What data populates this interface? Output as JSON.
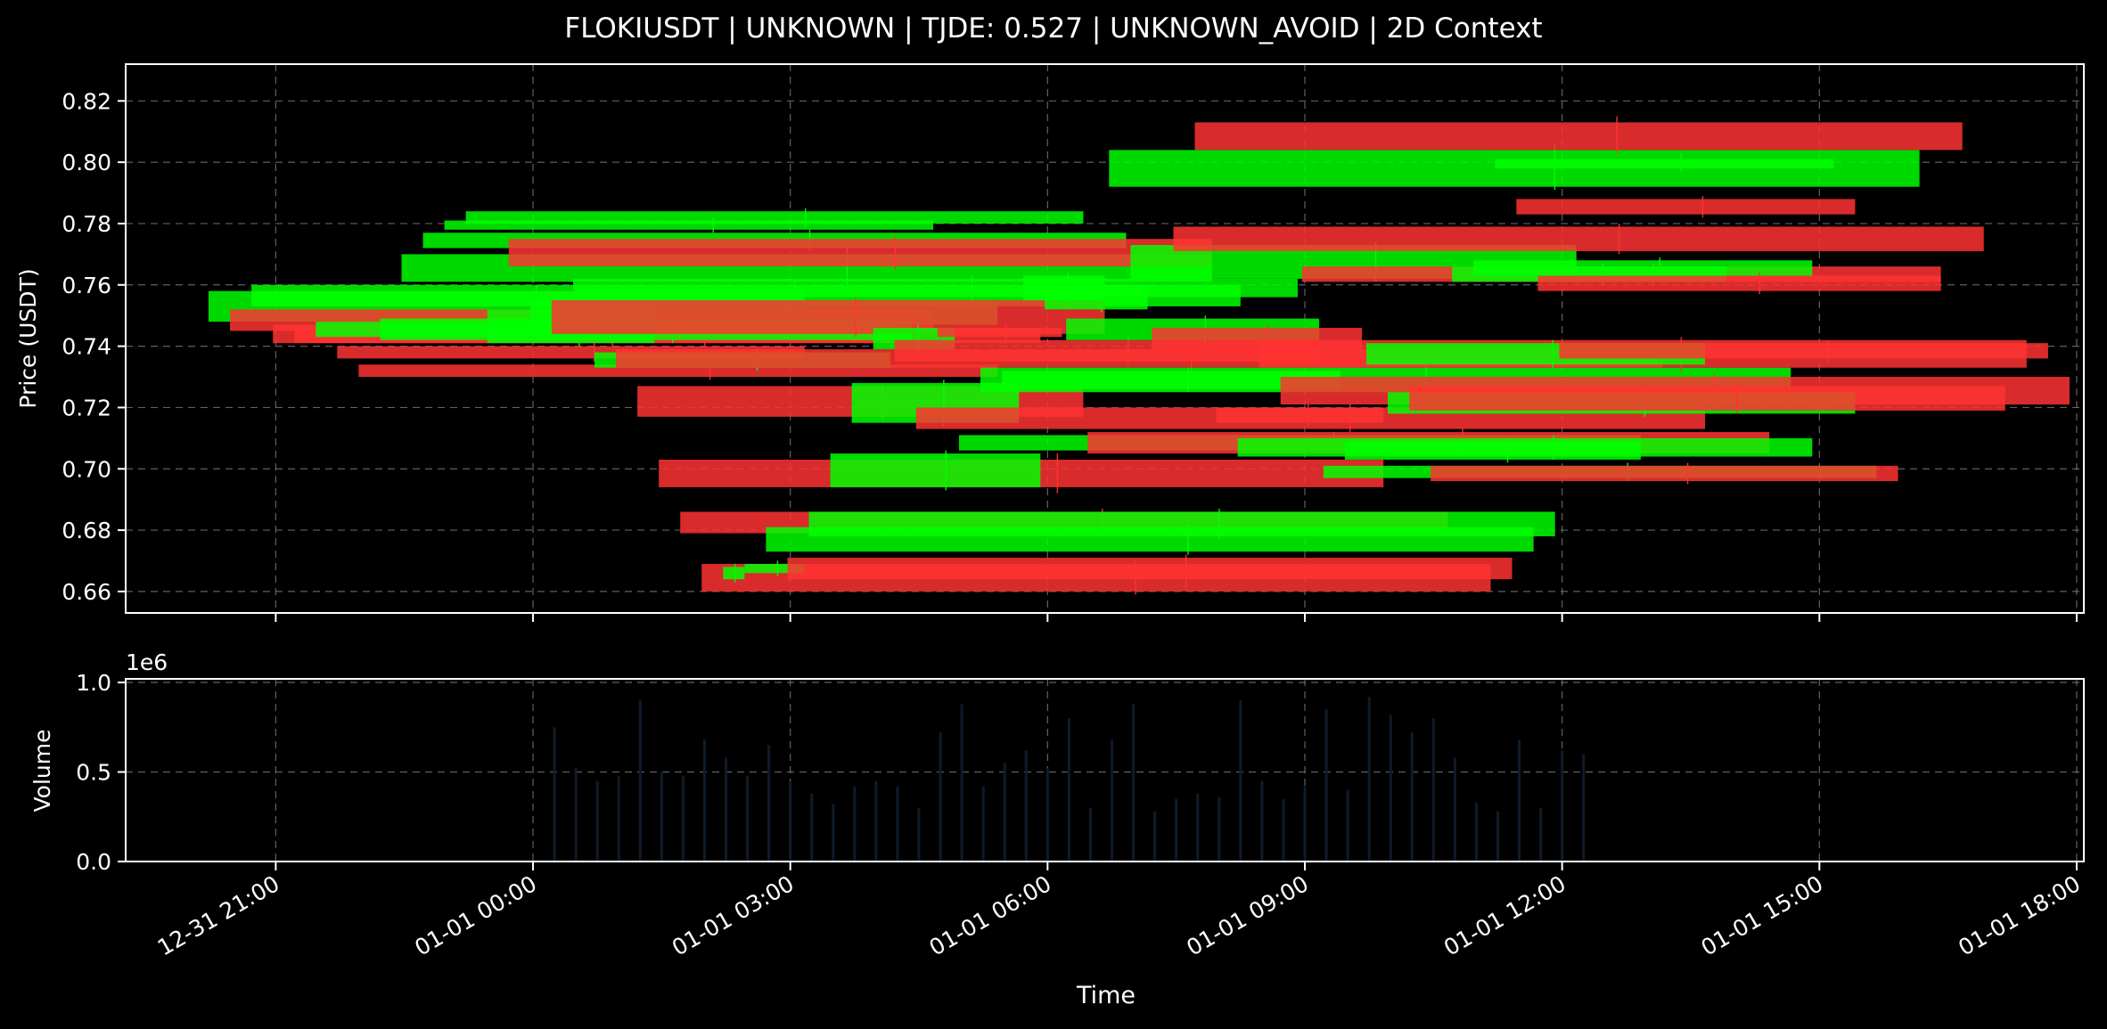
{
  "chart_data": {
    "type": "candlestick",
    "title": "FLOKIUSDT | UNKNOWN | TJDE: 0.527 | UNKNOWN_AVOID | 2D Context",
    "xlabel": "Time",
    "xlim": [
      "12-31 19:15",
      "01-01 18:05"
    ],
    "xticks": [
      "12-31 21:00",
      "01-01 00:00",
      "01-01 03:00",
      "01-01 06:00",
      "01-01 09:00",
      "01-01 12:00",
      "01-01 15:00",
      "01-01 18:00"
    ],
    "grid": true,
    "price_panel": {
      "ylabel": "Price (USDT)",
      "ylim": [
        0.653,
        0.832
      ],
      "yticks": [
        "0.66",
        "0.68",
        "0.70",
        "0.72",
        "0.74",
        "0.76",
        "0.78",
        "0.80",
        "0.82"
      ],
      "colors": {
        "up": "#00ff00",
        "down": "#ff3333"
      },
      "candles": [
        {
          "t0": "12-31 20:13",
          "t1": "01-01 03:10",
          "open": 0.748,
          "close": 0.758,
          "high": 0.76,
          "low": 0.747,
          "dir": "up"
        },
        {
          "t0": "12-31 20:28",
          "t1": "01-01 04:40",
          "open": 0.752,
          "close": 0.745,
          "high": 0.753,
          "low": 0.744,
          "dir": "down"
        },
        {
          "t0": "12-31 20:43",
          "t1": "01-01 08:15",
          "open": 0.753,
          "close": 0.76,
          "high": 0.761,
          "low": 0.752,
          "dir": "up"
        },
        {
          "t0": "12-31 20:58",
          "t1": "01-01 04:10",
          "open": 0.747,
          "close": 0.741,
          "high": 0.748,
          "low": 0.74,
          "dir": "down"
        },
        {
          "t0": "12-31 21:13",
          "t1": "01-01 05:55",
          "open": 0.746,
          "close": 0.741,
          "high": 0.747,
          "low": 0.74,
          "dir": "down"
        },
        {
          "t0": "12-31 21:28",
          "t1": "01-01 00:45",
          "open": 0.743,
          "close": 0.748,
          "high": 0.749,
          "low": 0.742,
          "dir": "up"
        },
        {
          "t0": "12-31 21:43",
          "t1": "01-01 03:10",
          "open": 0.74,
          "close": 0.736,
          "high": 0.741,
          "low": 0.735,
          "dir": "down"
        },
        {
          "t0": "12-31 21:58",
          "t1": "01-01 05:25",
          "open": 0.734,
          "close": 0.73,
          "high": 0.735,
          "low": 0.729,
          "dir": "down"
        },
        {
          "t0": "12-31 22:13",
          "t1": "01-01 04:25",
          "open": 0.742,
          "close": 0.749,
          "high": 0.75,
          "low": 0.741,
          "dir": "up"
        },
        {
          "t0": "12-31 22:28",
          "t1": "01-01 07:55",
          "open": 0.761,
          "close": 0.77,
          "high": 0.772,
          "low": 0.76,
          "dir": "up"
        },
        {
          "t0": "12-31 22:43",
          "t1": "01-01 06:55",
          "open": 0.772,
          "close": 0.777,
          "high": 0.778,
          "low": 0.771,
          "dir": "up"
        },
        {
          "t0": "12-31 22:58",
          "t1": "01-01 04:40",
          "open": 0.778,
          "close": 0.781,
          "high": 0.782,
          "low": 0.777,
          "dir": "up"
        },
        {
          "t0": "12-31 23:13",
          "t1": "01-01 06:25",
          "open": 0.78,
          "close": 0.784,
          "high": 0.785,
          "low": 0.779,
          "dir": "up"
        },
        {
          "t0": "12-31 23:28",
          "t1": "01-01 01:25",
          "open": 0.741,
          "close": 0.752,
          "high": 0.753,
          "low": 0.74,
          "dir": "up"
        },
        {
          "t0": "12-31 23:43",
          "t1": "01-01 07:55",
          "open": 0.775,
          "close": 0.766,
          "high": 0.776,
          "low": 0.765,
          "dir": "down"
        },
        {
          "t0": "12-31 23:58",
          "t1": "01-01 05:25",
          "open": 0.747,
          "close": 0.755,
          "high": 0.756,
          "low": 0.746,
          "dir": "up"
        },
        {
          "t0": "01-01 00:13",
          "t1": "01-01 06:40",
          "open": 0.755,
          "close": 0.744,
          "high": 0.756,
          "low": 0.743,
          "dir": "down"
        },
        {
          "t0": "01-01 00:28",
          "t1": "01-01 08:55",
          "open": 0.756,
          "close": 0.762,
          "high": 0.763,
          "low": 0.755,
          "dir": "up"
        },
        {
          "t0": "01-01 00:43",
          "t1": "01-01 04:10",
          "open": 0.733,
          "close": 0.738,
          "high": 0.739,
          "low": 0.732,
          "dir": "up"
        },
        {
          "t0": "01-01 00:58",
          "t1": "01-01 13:10",
          "open": 0.739,
          "close": 0.733,
          "high": 0.74,
          "low": 0.732,
          "dir": "down"
        },
        {
          "t0": "01-01 01:13",
          "t1": "01-01 06:25",
          "open": 0.727,
          "close": 0.717,
          "high": 0.728,
          "low": 0.716,
          "dir": "down"
        },
        {
          "t0": "01-01 01:28",
          "t1": "01-01 09:55",
          "open": 0.703,
          "close": 0.694,
          "high": 0.705,
          "low": 0.692,
          "dir": "down"
        },
        {
          "t0": "01-01 01:43",
          "t1": "01-01 10:40",
          "open": 0.686,
          "close": 0.679,
          "high": 0.687,
          "low": 0.678,
          "dir": "down"
        },
        {
          "t0": "01-01 01:58",
          "t1": "01-01 11:10",
          "open": 0.669,
          "close": 0.66,
          "high": 0.67,
          "low": 0.659,
          "dir": "down"
        },
        {
          "t0": "01-01 02:13",
          "t1": "01-01 02:28",
          "open": 0.664,
          "close": 0.668,
          "high": 0.669,
          "low": 0.663,
          "dir": "up"
        },
        {
          "t0": "01-01 02:28",
          "t1": "01-01 03:10",
          "open": 0.666,
          "close": 0.669,
          "high": 0.67,
          "low": 0.665,
          "dir": "up"
        },
        {
          "t0": "01-01 02:43",
          "t1": "01-01 11:40",
          "open": 0.673,
          "close": 0.681,
          "high": 0.682,
          "low": 0.672,
          "dir": "up"
        },
        {
          "t0": "01-01 02:58",
          "t1": "01-01 11:25",
          "open": 0.671,
          "close": 0.664,
          "high": 0.672,
          "low": 0.661,
          "dir": "down"
        },
        {
          "t0": "01-01 03:13",
          "t1": "01-01 11:55",
          "open": 0.678,
          "close": 0.686,
          "high": 0.687,
          "low": 0.677,
          "dir": "up"
        },
        {
          "t0": "01-01 03:28",
          "t1": "01-01 05:55",
          "open": 0.694,
          "close": 0.705,
          "high": 0.706,
          "low": 0.693,
          "dir": "up"
        },
        {
          "t0": "01-01 03:43",
          "t1": "01-01 05:40",
          "open": 0.715,
          "close": 0.728,
          "high": 0.729,
          "low": 0.714,
          "dir": "up"
        },
        {
          "t0": "01-01 03:58",
          "t1": "01-01 04:55",
          "open": 0.739,
          "close": 0.746,
          "high": 0.747,
          "low": 0.738,
          "dir": "up"
        },
        {
          "t0": "01-01 04:13",
          "t1": "01-01 09:10",
          "open": 0.742,
          "close": 0.735,
          "high": 0.743,
          "low": 0.734,
          "dir": "down"
        },
        {
          "t0": "01-01 04:28",
          "t1": "01-01 13:40",
          "open": 0.72,
          "close": 0.713,
          "high": 0.721,
          "low": 0.712,
          "dir": "down"
        },
        {
          "t0": "01-01 04:43",
          "t1": "01-01 06:10",
          "open": 0.746,
          "close": 0.743,
          "high": 0.747,
          "low": 0.742,
          "dir": "down"
        },
        {
          "t0": "01-01 04:58",
          "t1": "01-01 12:55",
          "open": 0.706,
          "close": 0.711,
          "high": 0.712,
          "low": 0.705,
          "dir": "up"
        },
        {
          "t0": "01-01 05:13",
          "t1": "01-01 14:40",
          "open": 0.725,
          "close": 0.733,
          "high": 0.734,
          "low": 0.724,
          "dir": "up"
        },
        {
          "t0": "01-01 05:28",
          "t1": "01-01 09:25",
          "open": 0.726,
          "close": 0.732,
          "high": 0.733,
          "low": 0.725,
          "dir": "up"
        },
        {
          "t0": "01-01 05:43",
          "t1": "01-01 06:40",
          "open": 0.755,
          "close": 0.763,
          "high": 0.764,
          "low": 0.754,
          "dir": "up"
        },
        {
          "t0": "01-01 05:58",
          "t1": "01-01 07:10",
          "open": 0.752,
          "close": 0.76,
          "high": 0.761,
          "low": 0.751,
          "dir": "up"
        },
        {
          "t0": "01-01 06:13",
          "t1": "01-01 09:10",
          "open": 0.742,
          "close": 0.749,
          "high": 0.75,
          "low": 0.741,
          "dir": "up"
        },
        {
          "t0": "01-01 06:28",
          "t1": "01-01 14:25",
          "open": 0.712,
          "close": 0.705,
          "high": 0.713,
          "low": 0.704,
          "dir": "down"
        },
        {
          "t0": "01-01 06:43",
          "t1": "01-01 16:10",
          "open": 0.792,
          "close": 0.804,
          "high": 0.806,
          "low": 0.791,
          "dir": "up"
        },
        {
          "t0": "01-01 06:58",
          "t1": "01-01 12:10",
          "open": 0.762,
          "close": 0.773,
          "high": 0.774,
          "low": 0.761,
          "dir": "up"
        },
        {
          "t0": "01-01 07:13",
          "t1": "01-01 09:40",
          "open": 0.746,
          "close": 0.739,
          "high": 0.747,
          "low": 0.738,
          "dir": "down"
        },
        {
          "t0": "01-01 07:28",
          "t1": "01-01 16:55",
          "open": 0.779,
          "close": 0.771,
          "high": 0.78,
          "low": 0.77,
          "dir": "down"
        },
        {
          "t0": "01-01 07:43",
          "t1": "01-01 16:40",
          "open": 0.813,
          "close": 0.804,
          "high": 0.815,
          "low": 0.803,
          "dir": "down"
        },
        {
          "t0": "01-01 07:58",
          "t1": "01-01 09:55",
          "open": 0.72,
          "close": 0.715,
          "high": 0.721,
          "low": 0.714,
          "dir": "down"
        },
        {
          "t0": "01-01 08:13",
          "t1": "01-01 14:55",
          "open": 0.704,
          "close": 0.71,
          "high": 0.711,
          "low": 0.703,
          "dir": "up"
        },
        {
          "t0": "01-01 08:28",
          "t1": "01-01 17:25",
          "open": 0.742,
          "close": 0.733,
          "high": 0.743,
          "low": 0.732,
          "dir": "down"
        },
        {
          "t0": "01-01 08:43",
          "t1": "01-01 17:55",
          "open": 0.73,
          "close": 0.721,
          "high": 0.731,
          "low": 0.72,
          "dir": "down"
        },
        {
          "t0": "01-01 08:58",
          "t1": "01-01 16:25",
          "open": 0.766,
          "close": 0.761,
          "high": 0.767,
          "low": 0.76,
          "dir": "down"
        },
        {
          "t0": "01-01 09:13",
          "t1": "01-01 15:40",
          "open": 0.697,
          "close": 0.701,
          "high": 0.702,
          "low": 0.696,
          "dir": "up"
        },
        {
          "t0": "01-01 09:28",
          "t1": "01-01 12:55",
          "open": 0.703,
          "close": 0.709,
          "high": 0.71,
          "low": 0.702,
          "dir": "up"
        },
        {
          "t0": "01-01 09:43",
          "t1": "01-01 13:40",
          "open": 0.734,
          "close": 0.741,
          "high": 0.742,
          "low": 0.733,
          "dir": "up"
        },
        {
          "t0": "01-01 09:58",
          "t1": "01-01 15:25",
          "open": 0.718,
          "close": 0.725,
          "high": 0.726,
          "low": 0.717,
          "dir": "up"
        },
        {
          "t0": "01-01 10:13",
          "t1": "01-01 17:10",
          "open": 0.727,
          "close": 0.719,
          "high": 0.728,
          "low": 0.718,
          "dir": "down"
        },
        {
          "t0": "01-01 10:28",
          "t1": "01-01 15:55",
          "open": 0.701,
          "close": 0.696,
          "high": 0.702,
          "low": 0.695,
          "dir": "down"
        },
        {
          "t0": "01-01 10:43",
          "t1": "01-01 13:55",
          "open": 0.761,
          "close": 0.766,
          "high": 0.767,
          "low": 0.76,
          "dir": "up"
        },
        {
          "t0": "01-01 10:58",
          "t1": "01-01 14:55",
          "open": 0.763,
          "close": 0.768,
          "high": 0.769,
          "low": 0.762,
          "dir": "up"
        },
        {
          "t0": "01-01 11:13",
          "t1": "01-01 15:10",
          "open": 0.798,
          "close": 0.801,
          "high": 0.803,
          "low": 0.797,
          "dir": "up"
        },
        {
          "t0": "01-01 11:28",
          "t1": "01-01 15:25",
          "open": 0.788,
          "close": 0.783,
          "high": 0.789,
          "low": 0.782,
          "dir": "down"
        },
        {
          "t0": "01-01 11:43",
          "t1": "01-01 16:25",
          "open": 0.763,
          "close": 0.758,
          "high": 0.764,
          "low": 0.757,
          "dir": "down"
        },
        {
          "t0": "01-01 11:58",
          "t1": "01-01 17:40",
          "open": 0.741,
          "close": 0.736,
          "high": 0.742,
          "low": 0.735,
          "dir": "down"
        }
      ]
    },
    "volume_panel": {
      "ylabel": "Volume",
      "scale_label": "1e6",
      "ylim": [
        0,
        1.02
      ],
      "yticks": [
        "0.0",
        "0.5",
        "1.0"
      ],
      "bar_color": "#0f1b2a",
      "bars": [
        {
          "t": "01-01 00:15",
          "v": 0.75
        },
        {
          "t": "01-01 00:30",
          "v": 0.52
        },
        {
          "t": "01-01 00:45",
          "v": 0.45
        },
        {
          "t": "01-01 01:00",
          "v": 0.48
        },
        {
          "t": "01-01 01:15",
          "v": 0.9
        },
        {
          "t": "01-01 01:30",
          "v": 0.5
        },
        {
          "t": "01-01 01:45",
          "v": 0.48
        },
        {
          "t": "01-01 02:00",
          "v": 0.68
        },
        {
          "t": "01-01 02:15",
          "v": 0.58
        },
        {
          "t": "01-01 02:30",
          "v": 0.48
        },
        {
          "t": "01-01 02:45",
          "v": 0.65
        },
        {
          "t": "01-01 03:00",
          "v": 0.45
        },
        {
          "t": "01-01 03:15",
          "v": 0.38
        },
        {
          "t": "01-01 03:30",
          "v": 0.32
        },
        {
          "t": "01-01 03:45",
          "v": 0.42
        },
        {
          "t": "01-01 04:00",
          "v": 0.45
        },
        {
          "t": "01-01 04:15",
          "v": 0.42
        },
        {
          "t": "01-01 04:30",
          "v": 0.3
        },
        {
          "t": "01-01 04:45",
          "v": 0.72
        },
        {
          "t": "01-01 05:00",
          "v": 0.88
        },
        {
          "t": "01-01 05:15",
          "v": 0.42
        },
        {
          "t": "01-01 05:30",
          "v": 0.55
        },
        {
          "t": "01-01 05:45",
          "v": 0.62
        },
        {
          "t": "01-01 06:00",
          "v": 0.52
        },
        {
          "t": "01-01 06:15",
          "v": 0.8
        },
        {
          "t": "01-01 06:30",
          "v": 0.3
        },
        {
          "t": "01-01 06:45",
          "v": 0.68
        },
        {
          "t": "01-01 07:00",
          "v": 0.88
        },
        {
          "t": "01-01 07:15",
          "v": 0.28
        },
        {
          "t": "01-01 07:30",
          "v": 0.35
        },
        {
          "t": "01-01 07:45",
          "v": 0.38
        },
        {
          "t": "01-01 08:00",
          "v": 0.36
        },
        {
          "t": "01-01 08:15",
          "v": 0.9
        },
        {
          "t": "01-01 08:30",
          "v": 0.45
        },
        {
          "t": "01-01 08:45",
          "v": 0.35
        },
        {
          "t": "01-01 09:00",
          "v": 0.42
        },
        {
          "t": "01-01 09:15",
          "v": 0.85
        },
        {
          "t": "01-01 09:30",
          "v": 0.4
        },
        {
          "t": "01-01 09:45",
          "v": 0.92
        },
        {
          "t": "01-01 10:00",
          "v": 0.82
        },
        {
          "t": "01-01 10:15",
          "v": 0.72
        },
        {
          "t": "01-01 10:30",
          "v": 0.8
        },
        {
          "t": "01-01 10:45",
          "v": 0.58
        },
        {
          "t": "01-01 11:00",
          "v": 0.33
        },
        {
          "t": "01-01 11:15",
          "v": 0.28
        },
        {
          "t": "01-01 11:30",
          "v": 0.68
        },
        {
          "t": "01-01 11:45",
          "v": 0.3
        },
        {
          "t": "01-01 12:00",
          "v": 0.62
        },
        {
          "t": "01-01 12:15",
          "v": 0.6
        }
      ]
    }
  }
}
